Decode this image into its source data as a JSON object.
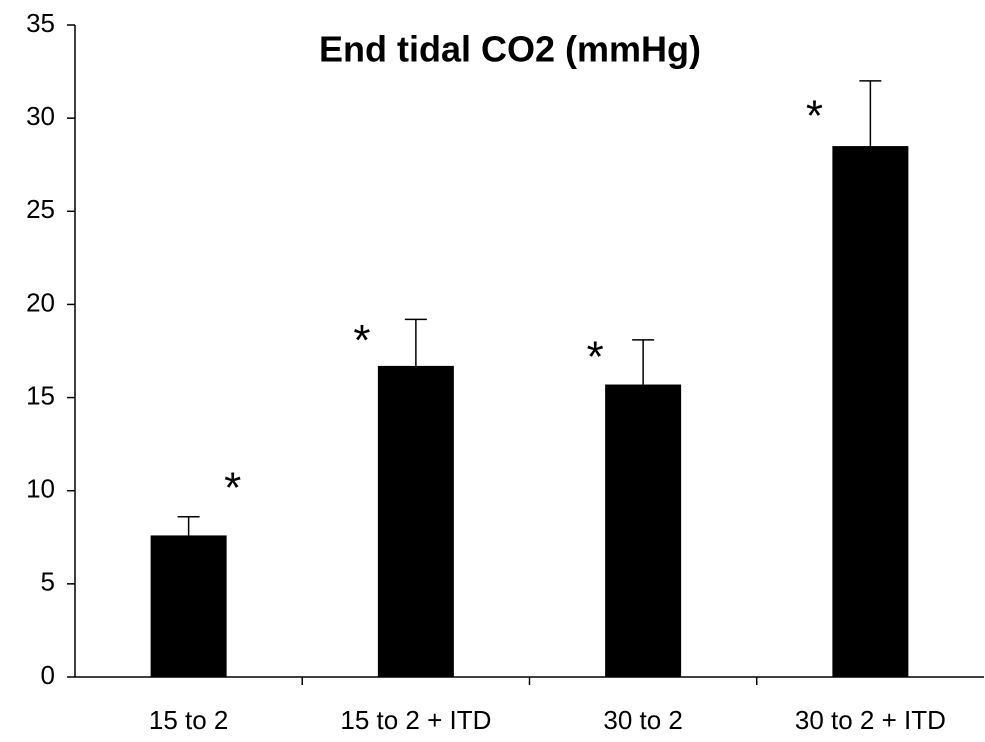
{
  "chart_data": {
    "type": "bar",
    "title": "End tidal CO2 (mmHg)",
    "categories": [
      "15 to 2",
      "15 to 2 + ITD",
      "30 to 2",
      "30 to 2 + ITD"
    ],
    "values": [
      7.6,
      16.7,
      15.7,
      28.5
    ],
    "errors": [
      1.0,
      2.5,
      2.4,
      3.5
    ],
    "annotations": [
      "*",
      "*",
      "*",
      "*"
    ],
    "color": "#000000",
    "ylim": [
      0,
      35
    ],
    "yticks": [
      0,
      5,
      10,
      15,
      20,
      25,
      30,
      35
    ],
    "grid": false
  }
}
